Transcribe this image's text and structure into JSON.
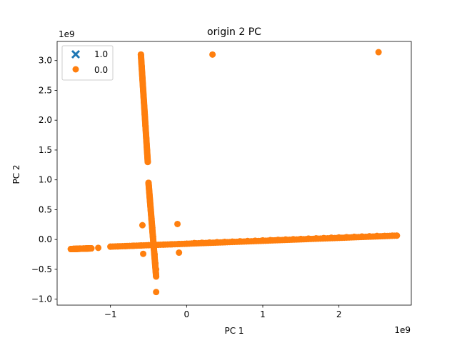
{
  "chart_data": {
    "type": "scatter",
    "title": "origin 2 PC",
    "xlabel": "PC 1",
    "ylabel": "PC 2",
    "x_offset_text": "1e9",
    "y_offset_text": "1e9",
    "xlim": [
      -1.7,
      2.95
    ],
    "ylim": [
      -1.1,
      3.32
    ],
    "xticks": [
      -1,
      0,
      1,
      2
    ],
    "xtick_labels": [
      "−1",
      "0",
      "1",
      "2"
    ],
    "yticks": [
      -1.0,
      -0.5,
      0.0,
      0.5,
      1.0,
      1.5,
      2.0,
      2.5,
      3.0
    ],
    "ytick_labels": [
      "−1.0",
      "−0.5",
      "0.0",
      "0.5",
      "1.0",
      "1.5",
      "2.0",
      "2.5",
      "3.0"
    ],
    "grid": false,
    "legend_position": "top-left",
    "series": [
      {
        "name": "1.0",
        "marker": "x",
        "color": "#1f77b4",
        "points": []
      },
      {
        "name": "0.0",
        "marker": "circle",
        "color": "#ff7f0e",
        "points": [
          [
            -1.52,
            -0.16
          ],
          [
            -1.48,
            -0.155
          ],
          [
            -1.44,
            -0.155
          ],
          [
            -1.4,
            -0.15
          ],
          [
            -1.36,
            -0.15
          ],
          [
            -1.32,
            -0.15
          ],
          [
            -1.28,
            -0.148
          ],
          [
            -1.25,
            -0.148
          ],
          [
            -1.16,
            -0.14
          ],
          [
            -1.0,
            -0.12
          ],
          [
            -0.9,
            -0.115
          ],
          [
            -0.8,
            -0.11
          ],
          [
            -0.7,
            -0.105
          ],
          [
            -0.6,
            -0.1
          ],
          [
            -0.5,
            -0.095
          ],
          [
            -0.4,
            -0.09
          ],
          [
            -0.3,
            -0.085
          ],
          [
            -0.2,
            -0.08
          ],
          [
            -0.1,
            -0.075
          ],
          [
            0.0,
            -0.07
          ],
          [
            0.1,
            -0.06
          ],
          [
            0.2,
            -0.055
          ],
          [
            0.3,
            -0.05
          ],
          [
            0.4,
            -0.045
          ],
          [
            0.5,
            -0.04
          ],
          [
            0.6,
            -0.035
          ],
          [
            0.7,
            -0.03
          ],
          [
            0.8,
            -0.025
          ],
          [
            0.9,
            -0.02
          ],
          [
            1.0,
            -0.015
          ],
          [
            1.1,
            -0.01
          ],
          [
            1.2,
            -0.005
          ],
          [
            1.3,
            0.0
          ],
          [
            1.4,
            0.005
          ],
          [
            1.5,
            0.01
          ],
          [
            1.6,
            0.015
          ],
          [
            1.7,
            0.02
          ],
          [
            1.8,
            0.025
          ],
          [
            1.9,
            0.03
          ],
          [
            2.0,
            0.035
          ],
          [
            2.1,
            0.04
          ],
          [
            2.2,
            0.045
          ],
          [
            2.3,
            0.05
          ],
          [
            2.4,
            0.055
          ],
          [
            2.5,
            0.06
          ],
          [
            2.6,
            0.06
          ],
          [
            2.7,
            0.065
          ],
          [
            2.76,
            0.065
          ],
          [
            -0.6,
            3.1
          ],
          [
            -0.59,
            2.9
          ],
          [
            -0.58,
            2.7
          ],
          [
            -0.57,
            2.5
          ],
          [
            -0.56,
            2.3
          ],
          [
            -0.55,
            2.1
          ],
          [
            -0.54,
            1.9
          ],
          [
            -0.53,
            1.7
          ],
          [
            -0.52,
            1.5
          ],
          [
            -0.51,
            1.3
          ],
          [
            -0.5,
            0.95
          ],
          [
            -0.49,
            0.8
          ],
          [
            -0.48,
            0.65
          ],
          [
            -0.47,
            0.5
          ],
          [
            -0.46,
            0.35
          ],
          [
            -0.45,
            0.2
          ],
          [
            -0.44,
            0.05
          ],
          [
            -0.43,
            -0.1
          ],
          [
            -0.42,
            -0.25
          ],
          [
            -0.41,
            -0.4
          ],
          [
            -0.4,
            -0.5
          ],
          [
            -0.4,
            -0.62
          ],
          [
            -0.4,
            -0.88
          ],
          [
            0.34,
            3.1
          ],
          [
            2.52,
            3.14
          ],
          [
            -0.58,
            0.24
          ],
          [
            -0.12,
            0.26
          ],
          [
            -0.1,
            -0.22
          ],
          [
            -0.57,
            -0.24
          ]
        ]
      }
    ]
  }
}
